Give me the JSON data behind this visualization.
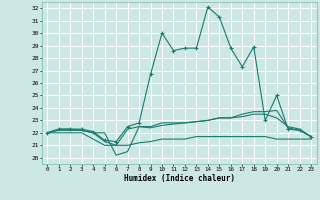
{
  "xlabel": "Humidex (Indice chaleur)",
  "xlim": [
    -0.5,
    23.5
  ],
  "ylim": [
    19.5,
    32.5
  ],
  "xticks": [
    0,
    1,
    2,
    3,
    4,
    5,
    6,
    7,
    8,
    9,
    10,
    11,
    12,
    13,
    14,
    15,
    16,
    17,
    18,
    19,
    20,
    21,
    22,
    23
  ],
  "yticks": [
    20,
    21,
    22,
    23,
    24,
    25,
    26,
    27,
    28,
    29,
    30,
    31,
    32
  ],
  "bg_color": "#cde8e4",
  "grid_color": "#ffffff",
  "line_color": "#1a7a6e",
  "line1_y": [
    22.0,
    22.3,
    22.3,
    22.3,
    22.1,
    21.4,
    21.3,
    22.5,
    22.8,
    26.7,
    30.0,
    28.6,
    28.8,
    28.8,
    32.1,
    31.3,
    28.8,
    27.3,
    28.9,
    23.0,
    25.0,
    22.3,
    22.2,
    21.7
  ],
  "line2_y": [
    22.0,
    22.3,
    22.3,
    22.2,
    22.0,
    22.0,
    20.2,
    20.5,
    22.5,
    22.4,
    22.6,
    22.7,
    22.8,
    22.9,
    23.0,
    23.2,
    23.2,
    23.3,
    23.5,
    23.5,
    23.2,
    22.5,
    22.3,
    21.7
  ],
  "line3_y": [
    22.0,
    22.2,
    22.2,
    22.2,
    22.0,
    21.3,
    21.0,
    22.3,
    22.5,
    22.5,
    22.8,
    22.8,
    22.8,
    22.9,
    23.0,
    23.2,
    23.2,
    23.5,
    23.7,
    23.7,
    23.8,
    22.4,
    22.2,
    21.7
  ],
  "line4_y": [
    22.0,
    22.0,
    22.0,
    22.0,
    21.5,
    21.0,
    21.0,
    21.0,
    21.2,
    21.3,
    21.5,
    21.5,
    21.5,
    21.7,
    21.7,
    21.7,
    21.7,
    21.7,
    21.7,
    21.7,
    21.5,
    21.5,
    21.5,
    21.5
  ]
}
